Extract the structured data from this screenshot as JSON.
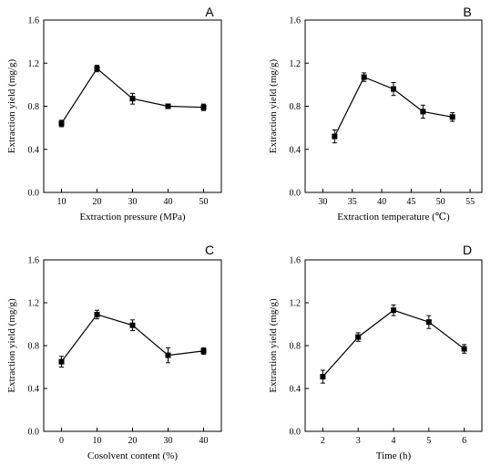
{
  "chart_data": [
    {
      "type": "line",
      "panel_label": "A",
      "xlabel": "Extraction pressure (MPa)",
      "ylabel": "Extraction yield (mg/g)",
      "x": [
        10,
        20,
        30,
        40,
        50
      ],
      "y": [
        0.64,
        1.15,
        0.87,
        0.8,
        0.79
      ],
      "error": [
        0.03,
        0.03,
        0.05,
        0.02,
        0.03
      ],
      "xlim": [
        5,
        55
      ],
      "ylim": [
        0,
        1.6
      ],
      "xticks": [
        "10",
        "20",
        "30",
        "40",
        "50"
      ],
      "yticks": [
        "0.0",
        "0.4",
        "0.8",
        "1.2",
        "1.6"
      ],
      "marker": "square",
      "color": "#000000",
      "grid": false
    },
    {
      "type": "line",
      "panel_label": "B",
      "xlabel": "Extraction temperature (℃)",
      "ylabel": "Extraction yield (mg/g)",
      "x": [
        32,
        37,
        42,
        47,
        52
      ],
      "y": [
        0.52,
        1.07,
        0.96,
        0.75,
        0.7
      ],
      "error": [
        0.06,
        0.04,
        0.06,
        0.06,
        0.04
      ],
      "xlim": [
        27,
        57
      ],
      "ylim": [
        0,
        1.6
      ],
      "xticks": [
        "30",
        "35",
        "40",
        "45",
        "50",
        "55"
      ],
      "yticks": [
        "0.0",
        "0.4",
        "0.8",
        "1.2",
        "1.6"
      ],
      "marker": "square",
      "color": "#000000",
      "grid": false
    },
    {
      "type": "line",
      "panel_label": "C",
      "xlabel": "Cosolvent content (%)",
      "ylabel": "Extraction yield (mg/g)",
      "x": [
        0,
        10,
        20,
        30,
        40
      ],
      "y": [
        0.65,
        1.09,
        0.99,
        0.71,
        0.75
      ],
      "error": [
        0.05,
        0.04,
        0.05,
        0.07,
        0.03
      ],
      "xlim": [
        -5,
        45
      ],
      "ylim": [
        0,
        1.6
      ],
      "xticks": [
        "0",
        "10",
        "20",
        "30",
        "40"
      ],
      "yticks": [
        "0.0",
        "0.4",
        "0.8",
        "1.2",
        "1.6"
      ],
      "marker": "square",
      "color": "#000000",
      "grid": false
    },
    {
      "type": "line",
      "panel_label": "D",
      "xlabel": "Time (h)",
      "ylabel": "Extraction yield (mg/g)",
      "x": [
        2,
        3,
        4,
        5,
        6
      ],
      "y": [
        0.51,
        0.88,
        1.13,
        1.02,
        0.77
      ],
      "error": [
        0.06,
        0.04,
        0.05,
        0.06,
        0.04
      ],
      "xlim": [
        1.5,
        6.5
      ],
      "ylim": [
        0,
        1.6
      ],
      "xticks": [
        "2",
        "3",
        "4",
        "5",
        "6"
      ],
      "yticks": [
        "0.0",
        "0.4",
        "0.8",
        "1.2",
        "1.6"
      ],
      "marker": "square",
      "color": "#000000",
      "grid": false
    }
  ]
}
